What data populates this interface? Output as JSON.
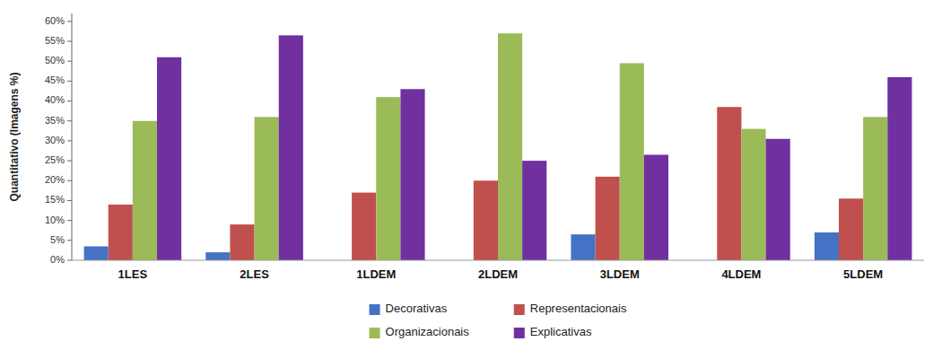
{
  "chart_data": {
    "type": "bar",
    "y_label": "Quantitativo (Imagens %)",
    "categories": [
      "1LES",
      "2LES",
      "1LDEM",
      "2LDEM",
      "3LDEM",
      "4LDEM",
      "5LDEM"
    ],
    "series": [
      {
        "name": "Decorativas",
        "color": "#4472C4",
        "values": [
          3.5,
          2.0,
          0.0,
          0.0,
          6.5,
          0.0,
          7.0
        ]
      },
      {
        "name": "Representacionais",
        "color": "#C0504D",
        "values": [
          14.0,
          9.0,
          17.0,
          20.0,
          21.0,
          38.5,
          15.5
        ]
      },
      {
        "name": "Organizacionais",
        "color": "#9BBB59",
        "values": [
          35.0,
          36.0,
          41.0,
          57.0,
          49.5,
          33.0,
          36.0
        ]
      },
      {
        "name": "Explicativas",
        "color": "#7030A0",
        "values": [
          51.0,
          56.5,
          43.0,
          25.0,
          26.5,
          30.5,
          46.0
        ]
      }
    ],
    "ylim": [
      0,
      62
    ],
    "yticks": [
      {
        "value": 0,
        "label": "0%"
      },
      {
        "value": 5,
        "label": "5%"
      },
      {
        "value": 10,
        "label": "10%"
      },
      {
        "value": 15,
        "label": "15%"
      },
      {
        "value": 20,
        "label": "20%"
      },
      {
        "value": 25,
        "label": "25%"
      },
      {
        "value": 30,
        "label": "30%"
      },
      {
        "value": 35,
        "label": "35%"
      },
      {
        "value": 40,
        "label": "40%"
      },
      {
        "value": 45,
        "label": "45%"
      },
      {
        "value": 50,
        "label": "50%"
      },
      {
        "value": 55,
        "label": "55%"
      },
      {
        "value": 60,
        "label": "60%"
      }
    ],
    "grid": false,
    "legend": "bottom"
  }
}
